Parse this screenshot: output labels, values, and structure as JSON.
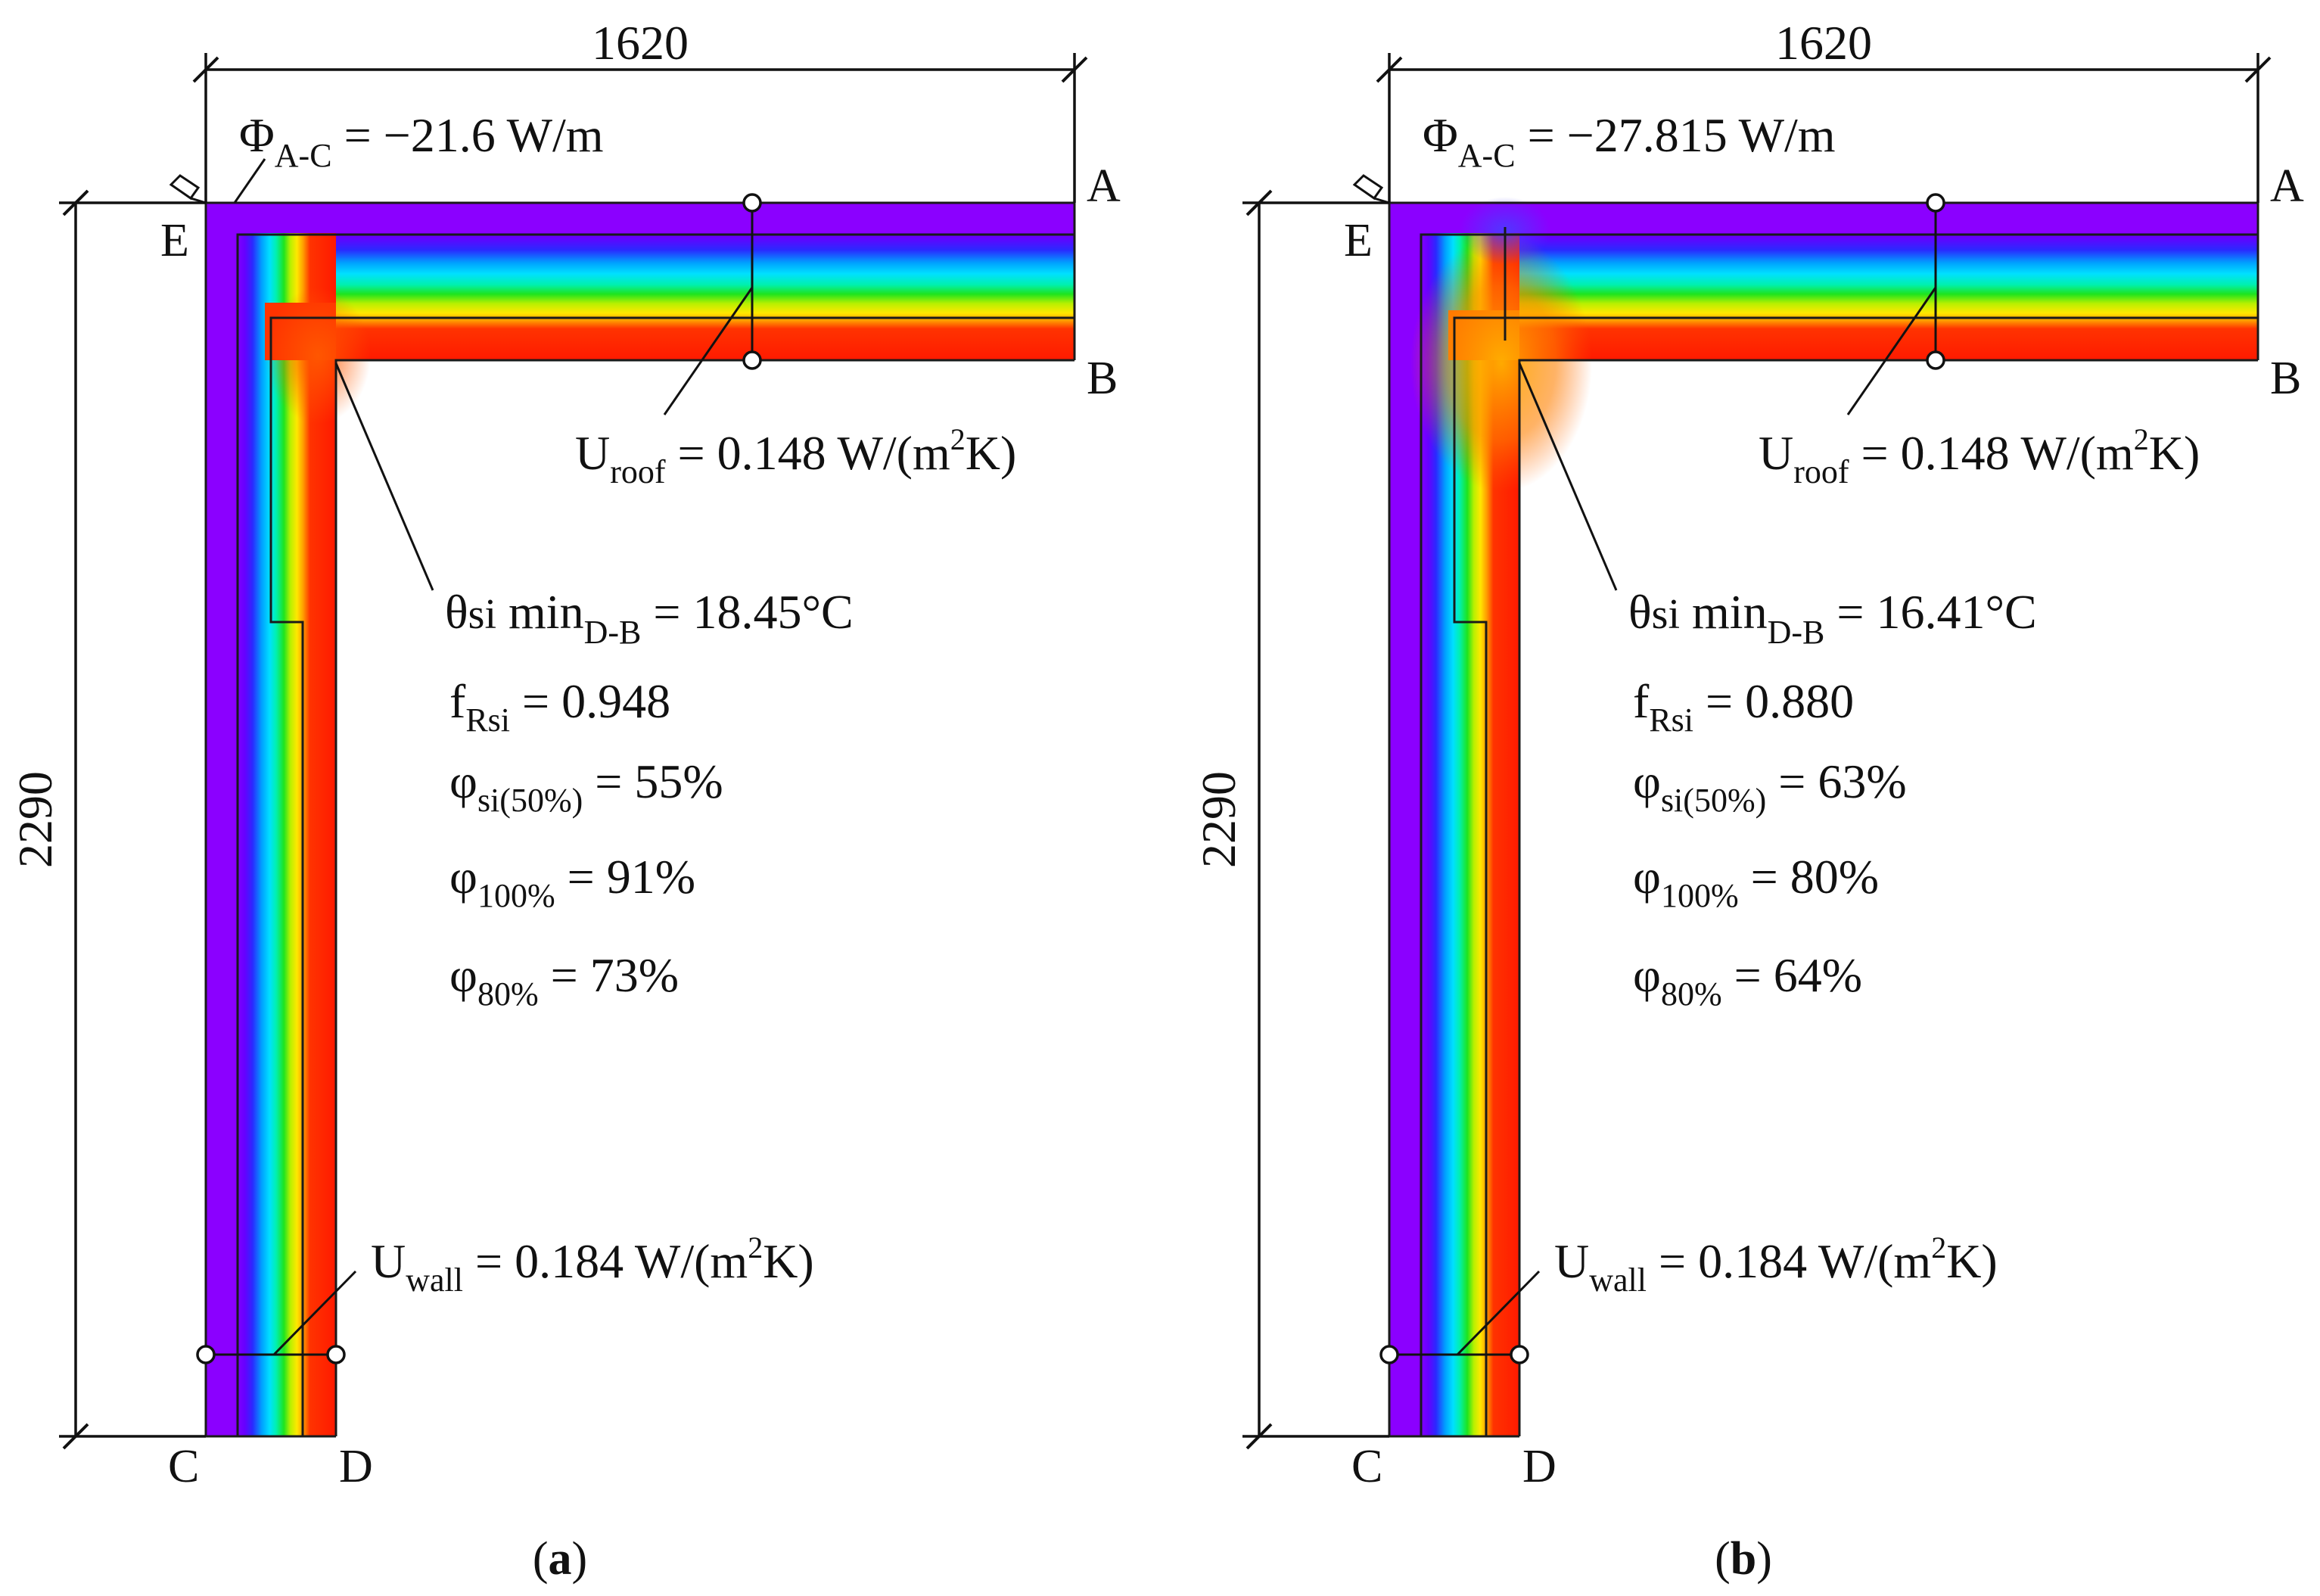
{
  "dimensions": {
    "width": "1620",
    "height": "2290"
  },
  "points": {
    "a": "A",
    "b": "B",
    "c": "C",
    "d": "D",
    "e": "E"
  },
  "labels": {
    "phi": "Φ",
    "phi_sub": "A-C",
    "u": "U",
    "u_roof_sub": "roof",
    "u_wall_sub": "wall",
    "u_value": "0.148",
    "u_wall_value": "0.184",
    "u_unit_pre": " W/(m",
    "u_unit_sup": "2",
    "u_unit_post": "K)",
    "theta": "θ",
    "theta_sub1": "si",
    "theta_mid": " min",
    "theta_sub2": "D-B",
    "f": "f",
    "f_sub": "Rsi",
    "varphi": "φ",
    "varphi_sub_si": "si(50%)",
    "varphi_sub_100": "100%",
    "varphi_sub_80": "80%"
  },
  "panels": [
    {
      "caption_open": "(",
      "caption_letter": "a",
      "caption_close": ")",
      "phi_value": " = −21.6 W/m",
      "theta_value": " = 18.45°C",
      "f_value": " = 0.948",
      "phi_si_value": " = 55%",
      "phi_100_value": " = 91%",
      "phi_80_value": " = 73%"
    },
    {
      "caption_open": "(",
      "caption_letter": "b",
      "caption_close": ")",
      "phi_value": " = −27.815 W/m",
      "theta_value": " = 16.41°C",
      "f_value": " = 0.880",
      "phi_si_value": " = 63%",
      "phi_100_value": " = 80%",
      "phi_80_value": " = 64%"
    }
  ],
  "colors": {
    "cold": "#8b00ff",
    "blue": "#2a2aff",
    "cyan": "#00d8ff",
    "green": "#1ee41e",
    "yellow": "#ffe800",
    "orange": "#ff9900",
    "warm": "#ff4400",
    "hot": "#ff1a00"
  }
}
